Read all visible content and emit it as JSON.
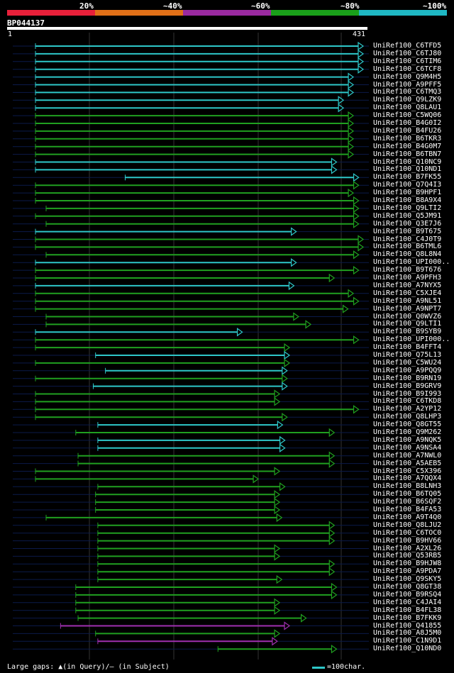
{
  "legend": {
    "labels": [
      "20%",
      "~40%",
      "~60%",
      "~80%",
      "~100%"
    ],
    "colors": [
      "#e8203a",
      "#e07018",
      "#9a2aa0",
      "#1aa01a",
      "#1fb8c4"
    ]
  },
  "query": {
    "id": "BP044137",
    "start": "1",
    "end": "431",
    "length": 431
  },
  "footer": {
    "gaps": "Large gaps: ▲(in Query)/– (in Subject)",
    "scale": "=100char."
  },
  "hits": [
    {
      "label": "UniRef100_C6TFD5",
      "start": 0,
      "end": 431,
      "color": "cyan"
    },
    {
      "label": "UniRef100_C6TJ80",
      "start": 0,
      "end": 431,
      "color": "cyan"
    },
    {
      "label": "UniRef100_C6TIM6",
      "start": 0,
      "end": 431,
      "color": "cyan"
    },
    {
      "label": "UniRef100_C6TCF8",
      "start": 0,
      "end": 431,
      "color": "cyan"
    },
    {
      "label": "UniRef100_Q9M4H5",
      "start": 0,
      "end": 418,
      "color": "cyan"
    },
    {
      "label": "UniRef100_A9PFF5",
      "start": 0,
      "end": 418,
      "color": "cyan"
    },
    {
      "label": "UniRef100_C6TMQ3",
      "start": 0,
      "end": 418,
      "color": "cyan"
    },
    {
      "label": "UniRef100_Q9LZK9",
      "start": 0,
      "end": 405,
      "color": "cyan"
    },
    {
      "label": "UniRef100_Q8LAU1",
      "start": 0,
      "end": 405,
      "color": "cyan"
    },
    {
      "label": "UniRef100_C5WQ06",
      "start": 0,
      "end": 418,
      "color": "green"
    },
    {
      "label": "UniRef100_B4G0I2",
      "start": 0,
      "end": 418,
      "color": "green"
    },
    {
      "label": "UniRef100_B4FU26",
      "start": 0,
      "end": 418,
      "color": "green"
    },
    {
      "label": "UniRef100_B6TKR3",
      "start": 0,
      "end": 418,
      "color": "green"
    },
    {
      "label": "UniRef100_B4G0M7",
      "start": 0,
      "end": 418,
      "color": "green"
    },
    {
      "label": "UniRef100_B6TBN7",
      "start": 0,
      "end": 418,
      "color": "green"
    },
    {
      "label": "UniRef100_Q10NC9",
      "start": 0,
      "end": 396,
      "color": "cyan"
    },
    {
      "label": "UniRef100_Q10ND1",
      "start": 0,
      "end": 396,
      "color": "cyan"
    },
    {
      "label": "UniRef100_B7FK55",
      "start": 118,
      "end": 425,
      "color": "cyan"
    },
    {
      "label": "UniRef100_Q7Q4I3",
      "start": 0,
      "end": 425,
      "color": "green"
    },
    {
      "label": "UniRef100_B9HPF1",
      "start": 0,
      "end": 418,
      "color": "green"
    },
    {
      "label": "UniRef100_B8A9X4",
      "start": 0,
      "end": 425,
      "color": "green"
    },
    {
      "label": "UniRef100_Q9LTI2",
      "start": 14,
      "end": 425,
      "color": "green"
    },
    {
      "label": "UniRef100_Q5JM91",
      "start": 0,
      "end": 425,
      "color": "green"
    },
    {
      "label": "UniRef100_Q3E7J6",
      "start": 14,
      "end": 425,
      "color": "green"
    },
    {
      "label": "UniRef100_B9T675",
      "start": 0,
      "end": 343,
      "color": "cyan"
    },
    {
      "label": "UniRef100_C4J0T9",
      "start": 0,
      "end": 431,
      "color": "green"
    },
    {
      "label": "UniRef100_B6TML6",
      "start": 0,
      "end": 431,
      "color": "green"
    },
    {
      "label": "UniRef100_Q8L8N4",
      "start": 14,
      "end": 425,
      "color": "green"
    },
    {
      "label": "UniRef100_UPI000..",
      "start": 0,
      "end": 343,
      "color": "cyan"
    },
    {
      "label": "UniRef100_B9T676",
      "start": 0,
      "end": 425,
      "color": "green"
    },
    {
      "label": "UniRef100_A9PFH3",
      "start": 0,
      "end": 393,
      "color": "green"
    },
    {
      "label": "UniRef100_A7NYX5",
      "start": 0,
      "end": 340,
      "color": "cyan"
    },
    {
      "label": "UniRef100_C5XJE4",
      "start": 0,
      "end": 418,
      "color": "green"
    },
    {
      "label": "UniRef100_A9NL51",
      "start": 0,
      "end": 425,
      "color": "green"
    },
    {
      "label": "UniRef100_A9NPT7",
      "start": 0,
      "end": 411,
      "color": "green"
    },
    {
      "label": "UniRef100_Q0WVZ6",
      "start": 14,
      "end": 346,
      "color": "green"
    },
    {
      "label": "UniRef100_Q9LTI1",
      "start": 14,
      "end": 362,
      "color": "green"
    },
    {
      "label": "UniRef100_B9SYB9",
      "start": 0,
      "end": 272,
      "color": "cyan"
    },
    {
      "label": "UniRef100_UPI000..",
      "start": 0,
      "end": 425,
      "color": "green"
    },
    {
      "label": "UniRef100_B4FFT4",
      "start": 0,
      "end": 334,
      "color": "green"
    },
    {
      "label": "UniRef100_Q75L13",
      "start": 79,
      "end": 334,
      "color": "cyan"
    },
    {
      "label": "UniRef100_C5WU24",
      "start": 0,
      "end": 334,
      "color": "green"
    },
    {
      "label": "UniRef100_A9PQQ9",
      "start": 92,
      "end": 331,
      "color": "cyan"
    },
    {
      "label": "UniRef100_B9RN19",
      "start": 0,
      "end": 331,
      "color": "green"
    },
    {
      "label": "UniRef100_B9GRV9",
      "start": 76,
      "end": 331,
      "color": "cyan"
    },
    {
      "label": "UniRef100_B9I993",
      "start": 0,
      "end": 321,
      "color": "green"
    },
    {
      "label": "UniRef100_C6TKD8",
      "start": 0,
      "end": 321,
      "color": "green"
    },
    {
      "label": "UniRef100_A2YP12",
      "start": 0,
      "end": 425,
      "color": "green"
    },
    {
      "label": "UniRef100_Q8LHP3",
      "start": 0,
      "end": 331,
      "color": "green"
    },
    {
      "label": "UniRef100_Q8GT55",
      "start": 82,
      "end": 325,
      "color": "cyan"
    },
    {
      "label": "UniRef100_Q9M262",
      "start": 53,
      "end": 393,
      "color": "green"
    },
    {
      "label": "UniRef100_A9NQK5",
      "start": 82,
      "end": 328,
      "color": "cyan"
    },
    {
      "label": "UniRef100_A9NSA4",
      "start": 82,
      "end": 328,
      "color": "cyan"
    },
    {
      "label": "UniRef100_A7NWL0",
      "start": 56,
      "end": 393,
      "color": "green"
    },
    {
      "label": "UniRef100_A5AEB5",
      "start": 56,
      "end": 393,
      "color": "green"
    },
    {
      "label": "UniRef100_C5X396",
      "start": 0,
      "end": 321,
      "color": "green"
    },
    {
      "label": "UniRef100_A7QQX4",
      "start": 0,
      "end": 293,
      "color": "green"
    },
    {
      "label": "UniRef100_B8LNH3",
      "start": 82,
      "end": 328,
      "color": "green"
    },
    {
      "label": "UniRef100_B6TQ05",
      "start": 79,
      "end": 321,
      "color": "green"
    },
    {
      "label": "UniRef100_B6SQF2",
      "start": 79,
      "end": 321,
      "color": "green"
    },
    {
      "label": "UniRef100_B4FA53",
      "start": 79,
      "end": 321,
      "color": "green"
    },
    {
      "label": "UniRef100_A9T4Q0",
      "start": 14,
      "end": 324,
      "color": "green"
    },
    {
      "label": "UniRef100_Q8LJU2",
      "start": 82,
      "end": 393,
      "color": "green"
    },
    {
      "label": "UniRef100_C6TOC0",
      "start": 82,
      "end": 393,
      "color": "green"
    },
    {
      "label": "UniRef100_B9HV66",
      "start": 82,
      "end": 393,
      "color": "green"
    },
    {
      "label": "UniRef100_A2XL26",
      "start": 82,
      "end": 321,
      "color": "green"
    },
    {
      "label": "UniRef100_Q53RB5",
      "start": 82,
      "end": 321,
      "color": "green"
    },
    {
      "label": "UniRef100_B9HJW8",
      "start": 82,
      "end": 393,
      "color": "green"
    },
    {
      "label": "UniRef100_A9PDA7",
      "start": 82,
      "end": 393,
      "color": "green"
    },
    {
      "label": "UniRef100_Q9SKY5",
      "start": 82,
      "end": 324,
      "color": "green"
    },
    {
      "label": "UniRef100_Q8GT38",
      "start": 53,
      "end": 396,
      "color": "green"
    },
    {
      "label": "UniRef100_B9RSQ4",
      "start": 53,
      "end": 396,
      "color": "green"
    },
    {
      "label": "UniRef100_C4JAI4",
      "start": 53,
      "end": 321,
      "color": "green"
    },
    {
      "label": "UniRef100_B4FL38",
      "start": 53,
      "end": 321,
      "color": "green"
    },
    {
      "label": "UniRef100_B7FKK9",
      "start": 56,
      "end": 356,
      "color": "green"
    },
    {
      "label": "UniRef100_Q41855",
      "start": 33,
      "end": 334,
      "color": "purple"
    },
    {
      "label": "UniRef100_A8J5M0",
      "start": 79,
      "end": 321,
      "color": "green"
    },
    {
      "label": "UniRef100_C1N9D1",
      "start": 82,
      "end": 318,
      "color": "purple"
    },
    {
      "label": "UniRef100_Q10ND0",
      "start": 240,
      "end": 396,
      "color": "green"
    }
  ]
}
